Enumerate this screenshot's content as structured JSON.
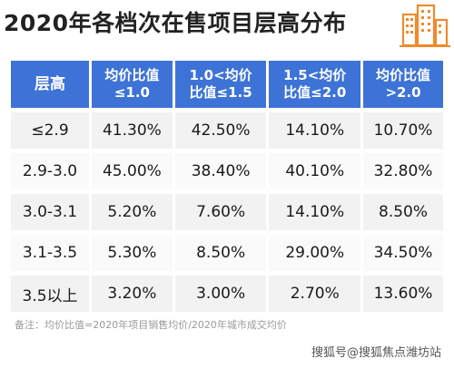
{
  "title": "2020年各档次在售项目层高分布",
  "header": {
    "col0": "层高",
    "col1a": "均价比值",
    "col1b": "≤1.0",
    "col2a": "1.0<均价",
    "col2b": "比值≤1.5",
    "col3a": "1.5<均价",
    "col3b": "比值≤2.0",
    "col4a": "均价比值",
    "col4b": ">2.0"
  },
  "rows": [
    {
      "label": "≤2.9",
      "v1": "41.30%",
      "v2": "42.50%",
      "v3": "14.10%",
      "v4": "10.70%"
    },
    {
      "label": "2.9-3.0",
      "v1": "45.00%",
      "v2": "38.40%",
      "v3": "40.10%",
      "v4": "32.80%"
    },
    {
      "label": "3.0-3.1",
      "v1": "5.20%",
      "v2": "7.60%",
      "v3": "14.10%",
      "v4": "8.50%"
    },
    {
      "label": "3.1-3.5",
      "v1": "5.30%",
      "v2": "8.50%",
      "v3": "29.00%",
      "v4": "34.50%"
    },
    {
      "label": "3.5以上",
      "v1": "3.20%",
      "v2": "3.00%",
      "v3": "2.70%",
      "v4": "13.60%"
    }
  ],
  "note": "备注：均价比值=2020年项目销售均价/2020年城市成交均价",
  "watermark": "搜狐号@搜狐焦点潍坊站",
  "colors": {
    "header": "#3d73d6",
    "row": "#f2f2f2",
    "logo": "#f08a2c"
  },
  "icons": {
    "logo": "building-icon"
  }
}
